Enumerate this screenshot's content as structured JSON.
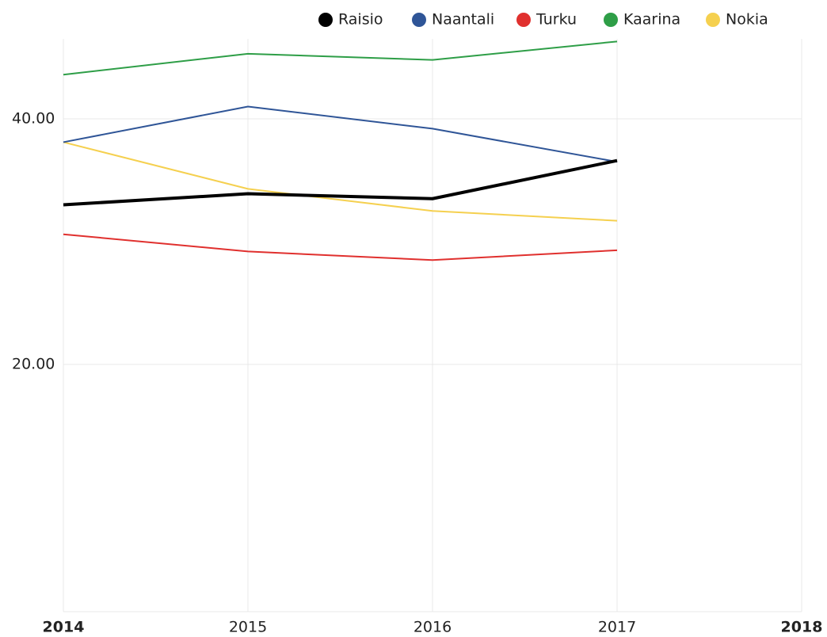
{
  "chart_data": {
    "type": "line",
    "categories": [
      "2014",
      "2015",
      "2016",
      "2017",
      "2018"
    ],
    "series": [
      {
        "name": "Raisio",
        "color": "#000000",
        "values": [
          33.0,
          33.9,
          33.5,
          36.6,
          null
        ]
      },
      {
        "name": "Naantali",
        "color": "#2f5597",
        "values": [
          38.1,
          41.0,
          39.2,
          36.5,
          null
        ]
      },
      {
        "name": "Turku",
        "color": "#e0302e",
        "values": [
          30.6,
          29.2,
          28.5,
          29.3,
          null
        ]
      },
      {
        "name": "Kaarina",
        "color": "#2e9e47",
        "values": [
          43.6,
          45.3,
          44.8,
          46.3,
          null
        ]
      },
      {
        "name": "Nokia",
        "color": "#f5d04f",
        "values": [
          38.1,
          34.3,
          32.5,
          31.7,
          null
        ]
      }
    ],
    "ylim": [
      0,
      46.5
    ],
    "yticks": [
      {
        "value": 20,
        "label": "20.00"
      },
      {
        "value": 40,
        "label": "40.00"
      }
    ],
    "grid": true,
    "legend": "top"
  }
}
